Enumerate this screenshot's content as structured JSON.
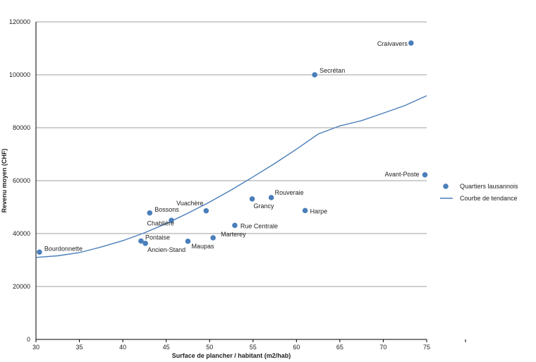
{
  "chart_data": {
    "type": "scatter",
    "xlabel": "Surface de plancher / habitant (m2/hab)",
    "ylabel": "Revenu moyen (CHF)",
    "xlim": [
      30,
      75
    ],
    "ylim": [
      0,
      120000
    ],
    "x_ticks": [
      30,
      35,
      40,
      45,
      50,
      55,
      60,
      65,
      70,
      75
    ],
    "y_ticks": [
      0,
      20000,
      40000,
      60000,
      80000,
      100000,
      120000
    ],
    "grid": "horizontal",
    "legend_position": "right",
    "colors": {
      "points": "#4a7ebb",
      "trend": "#4a7ebb",
      "grid": "#7f7f7f",
      "axis": "#000000"
    },
    "series": [
      {
        "name": "Quartiers lausannois",
        "kind": "scatter",
        "points": [
          {
            "label": "Bourdonnette",
            "x": 30.4,
            "y": 33000
          },
          {
            "label": "Pontaise",
            "x": 42.1,
            "y": 37200
          },
          {
            "label": "Ancien-Stand",
            "x": 42.6,
            "y": 36300
          },
          {
            "label": "Bossons",
            "x": 43.1,
            "y": 47800
          },
          {
            "label": "Chablière",
            "x": 45.6,
            "y": 45000
          },
          {
            "label": "Maupas",
            "x": 47.5,
            "y": 37100
          },
          {
            "label": "Vuachère",
            "x": 49.6,
            "y": 48600
          },
          {
            "label": "Marterey",
            "x": 50.4,
            "y": 38400
          },
          {
            "label": "Rue Centrale",
            "x": 52.9,
            "y": 43100
          },
          {
            "label": "Grancy",
            "x": 54.9,
            "y": 53100
          },
          {
            "label": "Rouveraie",
            "x": 57.1,
            "y": 53600
          },
          {
            "label": "Harpe",
            "x": 61.0,
            "y": 48700
          },
          {
            "label": "Secrétan",
            "x": 62.1,
            "y": 100000
          },
          {
            "label": "Craivavers",
            "x": 73.2,
            "y": 112000
          },
          {
            "label": "Avant-Poste",
            "x": 74.8,
            "y": 62200
          }
        ]
      },
      {
        "name": "Courbe de tendance",
        "kind": "line",
        "x": [
          30,
          32.5,
          35,
          37.5,
          40,
          42.5,
          45,
          47.5,
          50,
          52.5,
          55,
          57.5,
          60,
          62.5,
          65,
          67.5,
          70,
          72.5,
          75
        ],
        "y": [
          31000,
          31600,
          32800,
          34900,
          37300,
          40300,
          43800,
          47700,
          51900,
          56500,
          61400,
          66500,
          71900,
          77600,
          80700,
          82700,
          85500,
          88400,
          92100
        ]
      }
    ]
  }
}
